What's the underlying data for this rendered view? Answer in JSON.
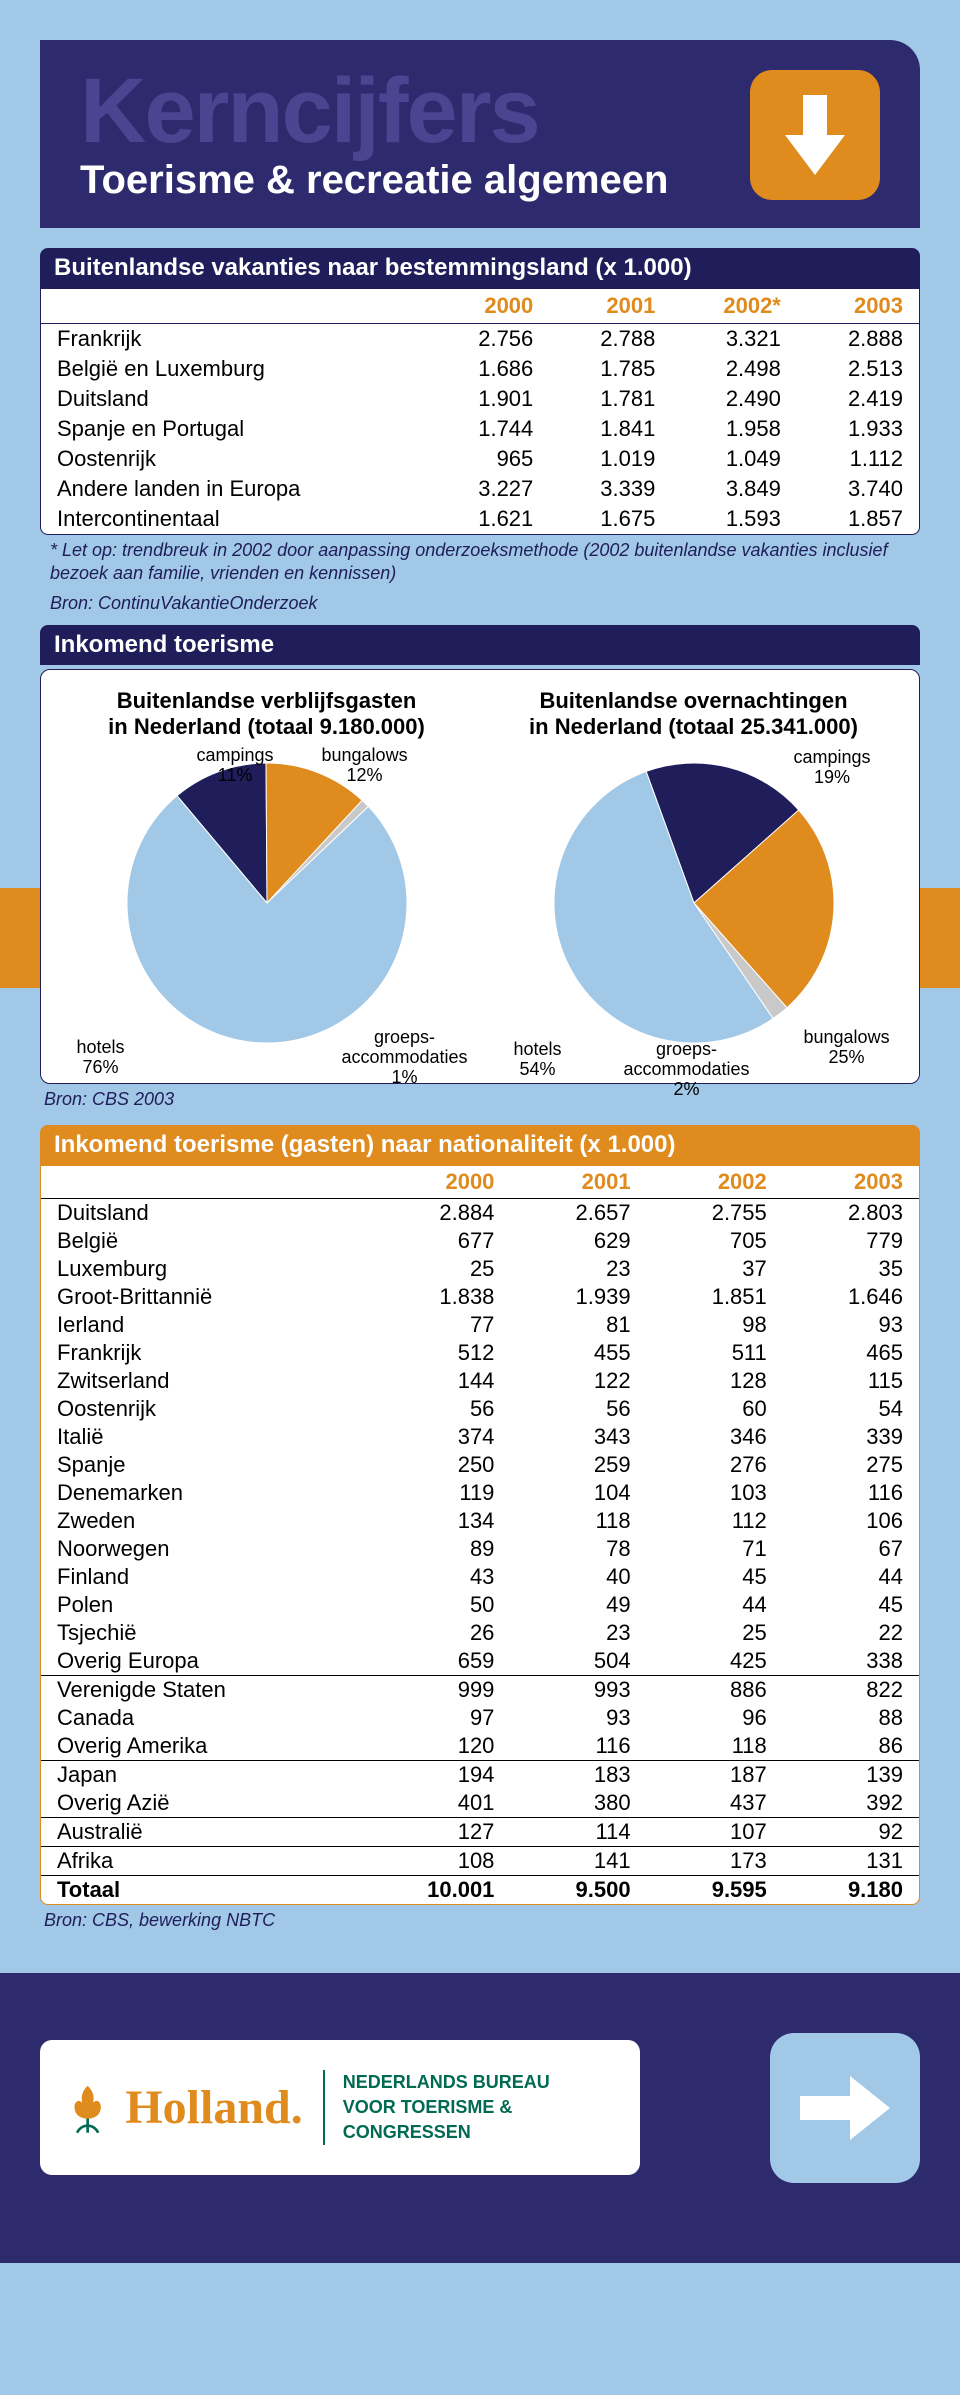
{
  "header": {
    "title": "Kerncijfers",
    "subtitle": "Toerisme & recreatie algemeen"
  },
  "colors": {
    "navy": "#1f1d5a",
    "purple": "#2e2a6e",
    "orange": "#e08b1e",
    "lightblue": "#a1c8e6",
    "lightblue2": "#a1c8e6",
    "white": "#ffffff",
    "grey": "#c9c9c9"
  },
  "table1": {
    "title": "Buitenlandse vakanties naar bestemmingsland (x 1.000)",
    "columns": [
      "",
      "2000",
      "2001",
      "2002*",
      "2003"
    ],
    "rows": [
      [
        "Frankrijk",
        "2.756",
        "2.788",
        "3.321",
        "2.888"
      ],
      [
        "België en Luxemburg",
        "1.686",
        "1.785",
        "2.498",
        "2.513"
      ],
      [
        "Duitsland",
        "1.901",
        "1.781",
        "2.490",
        "2.419"
      ],
      [
        "Spanje en Portugal",
        "1.744",
        "1.841",
        "1.958",
        "1.933"
      ],
      [
        "Oostenrijk",
        "965",
        "1.019",
        "1.049",
        "1.112"
      ],
      [
        "Andere landen in Europa",
        "3.227",
        "3.339",
        "3.849",
        "3.740"
      ],
      [
        "Intercontinentaal",
        "1.621",
        "1.675",
        "1.593",
        "1.857"
      ]
    ],
    "footnote1": "* Let op: trendbreuk in 2002 door aanpassing onderzoeksmethode (2002 buitenlandse vakanties inclusief bezoek aan familie, vrienden en kennissen)",
    "footnote2": "Bron: ContinuVakantieOnderzoek"
  },
  "incoming_header": "Inkomend toerisme",
  "pie1": {
    "title": "Buitenlandse verblijfsgasten\nin Nederland (totaal 9.180.000)",
    "slices": [
      {
        "label": "hotels",
        "pct": 76,
        "color": "#a1c8e6"
      },
      {
        "label": "campings",
        "pct": 11,
        "color": "#1f1d5a"
      },
      {
        "label": "bungalows",
        "pct": 12,
        "color": "#e08b1e"
      },
      {
        "label": "groeps-\naccommodaties",
        "pct": 1,
        "color": "#c9c9c9"
      }
    ]
  },
  "pie2": {
    "title": "Buitenlandse overnachtingen\nin Nederland (totaal 25.341.000)",
    "slices": [
      {
        "label": "hotels",
        "pct": 54,
        "color": "#a1c8e6"
      },
      {
        "label": "campings",
        "pct": 19,
        "color": "#1f1d5a"
      },
      {
        "label": "bungalows",
        "pct": 25,
        "color": "#e08b1e"
      },
      {
        "label": "groeps-\naccommodaties",
        "pct": 2,
        "color": "#c9c9c9"
      }
    ]
  },
  "pie_footnote": "Bron: CBS 2003",
  "table2": {
    "title": "Inkomend toerisme (gasten) naar nationaliteit (x 1.000)",
    "columns": [
      "",
      "2000",
      "2001",
      "2002",
      "2003"
    ],
    "groups": [
      [
        [
          "Duitsland",
          "2.884",
          "2.657",
          "2.755",
          "2.803"
        ],
        [
          "België",
          "677",
          "629",
          "705",
          "779"
        ],
        [
          "Luxemburg",
          "25",
          "23",
          "37",
          "35"
        ],
        [
          "Groot-Brittannië",
          "1.838",
          "1.939",
          "1.851",
          "1.646"
        ],
        [
          "Ierland",
          "77",
          "81",
          "98",
          "93"
        ],
        [
          "Frankrijk",
          "512",
          "455",
          "511",
          "465"
        ],
        [
          "Zwitserland",
          "144",
          "122",
          "128",
          "115"
        ],
        [
          "Oostenrijk",
          "56",
          "56",
          "60",
          "54"
        ],
        [
          "Italië",
          "374",
          "343",
          "346",
          "339"
        ],
        [
          "Spanje",
          "250",
          "259",
          "276",
          "275"
        ],
        [
          "Denemarken",
          "119",
          "104",
          "103",
          "116"
        ],
        [
          "Zweden",
          "134",
          "118",
          "112",
          "106"
        ],
        [
          "Noorwegen",
          "89",
          "78",
          "71",
          "67"
        ],
        [
          "Finland",
          "43",
          "40",
          "45",
          "44"
        ],
        [
          "Polen",
          "50",
          "49",
          "44",
          "45"
        ],
        [
          "Tsjechië",
          "26",
          "23",
          "25",
          "22"
        ],
        [
          "Overig Europa",
          "659",
          "504",
          "425",
          "338"
        ]
      ],
      [
        [
          "Verenigde Staten",
          "999",
          "993",
          "886",
          "822"
        ],
        [
          "Canada",
          "97",
          "93",
          "96",
          "88"
        ],
        [
          "Overig Amerika",
          "120",
          "116",
          "118",
          "86"
        ]
      ],
      [
        [
          "Japan",
          "194",
          "183",
          "187",
          "139"
        ],
        [
          "Overig Azië",
          "401",
          "380",
          "437",
          "392"
        ]
      ],
      [
        [
          "Australië",
          "127",
          "114",
          "107",
          "92"
        ]
      ],
      [
        [
          "Afrika",
          "108",
          "141",
          "173",
          "131"
        ]
      ]
    ],
    "total": [
      "Totaal",
      "10.001",
      "9.500",
      "9.595",
      "9.180"
    ],
    "footnote": "Bron: CBS, bewerking NBTC"
  },
  "footer": {
    "brand": "Holland.",
    "org_line1": "NEDERLANDS BUREAU",
    "org_line2": "VOOR TOERISME & CONGRESSEN"
  }
}
